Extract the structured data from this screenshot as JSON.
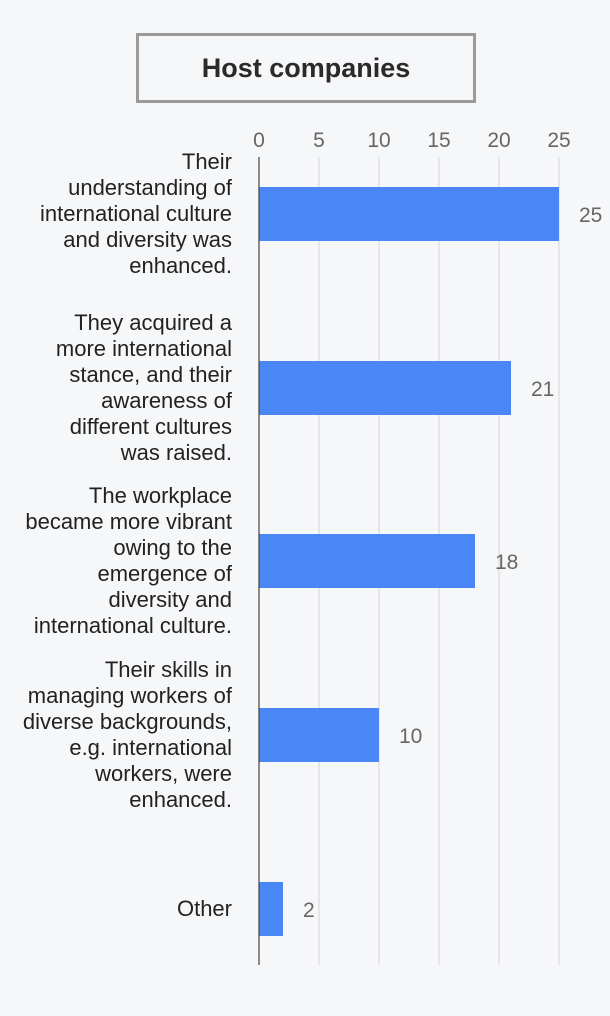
{
  "chart_data": {
    "type": "bar",
    "orientation": "horizontal",
    "title": "Host companies",
    "categories": [
      "Their\nunderstanding of\ninternational culture\nand diversity was\nenhanced.",
      "They acquired a\nmore international\nstance, and their\nawareness of\ndifferent cultures\nwas raised.",
      "The workplace\nbecame more vibrant\nowing to the\nemergence  of\ndiversity and\ninternational culture.",
      "Their skills in\nmanaging workers of\ndiverse backgrounds,\ne.g. international\nworkers, were\nenhanced.",
      "Other"
    ],
    "values": [
      25,
      21,
      18,
      10,
      2
    ],
    "xlim": [
      0,
      25
    ],
    "xticks": [
      "0",
      "5",
      "10",
      "15",
      "20",
      "25"
    ],
    "grid": true,
    "bar_color": "#4a86f5"
  }
}
